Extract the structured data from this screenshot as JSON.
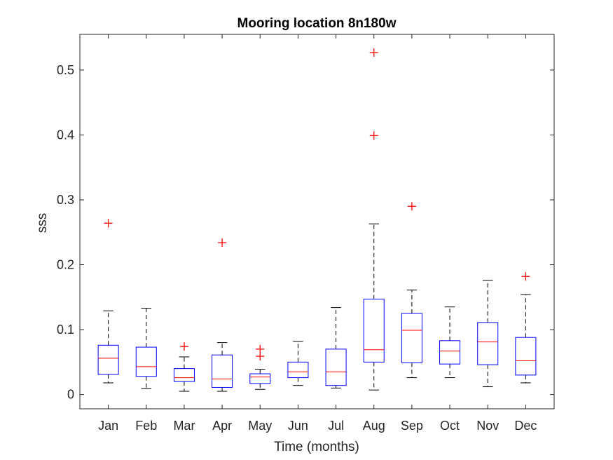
{
  "chart_data": {
    "type": "box",
    "title": "Mooring location 8n180w",
    "xlabel": "Time (months)",
    "ylabel": "sss",
    "ylim": [
      -0.022,
      0.555
    ],
    "yticks": [
      0,
      0.1,
      0.2,
      0.3,
      0.4,
      0.5
    ],
    "ytick_labels": [
      "0",
      "0.1",
      "0.2",
      "0.3",
      "0.4",
      "0.5"
    ],
    "grid": false,
    "categories": [
      "Jan",
      "Feb",
      "Mar",
      "Apr",
      "May",
      "Jun",
      "Jul",
      "Aug",
      "Sep",
      "Oct",
      "Nov",
      "Dec"
    ],
    "boxes": [
      {
        "category": "Jan",
        "whisker_low": 0.018,
        "q1": 0.031,
        "median": 0.056,
        "q3": 0.076,
        "whisker_high": 0.129,
        "outliers": [
          0.264
        ]
      },
      {
        "category": "Feb",
        "whisker_low": 0.009,
        "q1": 0.028,
        "median": 0.043,
        "q3": 0.073,
        "whisker_high": 0.133,
        "outliers": []
      },
      {
        "category": "Mar",
        "whisker_low": 0.005,
        "q1": 0.02,
        "median": 0.026,
        "q3": 0.04,
        "whisker_high": 0.058,
        "outliers": [
          0.074
        ]
      },
      {
        "category": "Apr",
        "whisker_low": 0.005,
        "q1": 0.011,
        "median": 0.024,
        "q3": 0.061,
        "whisker_high": 0.08,
        "outliers": [
          0.234
        ]
      },
      {
        "category": "May",
        "whisker_low": 0.008,
        "q1": 0.017,
        "median": 0.027,
        "q3": 0.032,
        "whisker_high": 0.039,
        "outliers": [
          0.059,
          0.07
        ]
      },
      {
        "category": "Jun",
        "whisker_low": 0.014,
        "q1": 0.026,
        "median": 0.035,
        "q3": 0.05,
        "whisker_high": 0.082,
        "outliers": []
      },
      {
        "category": "Jul",
        "whisker_low": 0.01,
        "q1": 0.014,
        "median": 0.035,
        "q3": 0.07,
        "whisker_high": 0.134,
        "outliers": []
      },
      {
        "category": "Aug",
        "whisker_low": 0.007,
        "q1": 0.05,
        "median": 0.069,
        "q3": 0.147,
        "whisker_high": 0.263,
        "outliers": [
          0.399,
          0.527
        ]
      },
      {
        "category": "Sep",
        "whisker_low": 0.026,
        "q1": 0.049,
        "median": 0.099,
        "q3": 0.125,
        "whisker_high": 0.161,
        "outliers": [
          0.29
        ]
      },
      {
        "category": "Oct",
        "whisker_low": 0.026,
        "q1": 0.047,
        "median": 0.067,
        "q3": 0.083,
        "whisker_high": 0.135,
        "outliers": []
      },
      {
        "category": "Nov",
        "whisker_low": 0.012,
        "q1": 0.046,
        "median": 0.081,
        "q3": 0.111,
        "whisker_high": 0.176,
        "outliers": []
      },
      {
        "category": "Dec",
        "whisker_low": 0.018,
        "q1": 0.03,
        "median": 0.052,
        "q3": 0.088,
        "whisker_high": 0.154,
        "outliers": [
          0.182
        ]
      }
    ],
    "colors": {
      "box": "#0000ff",
      "median": "#ff0000",
      "whisker": "#000000",
      "outlier": "#ff0000",
      "axes": "#262626"
    }
  }
}
